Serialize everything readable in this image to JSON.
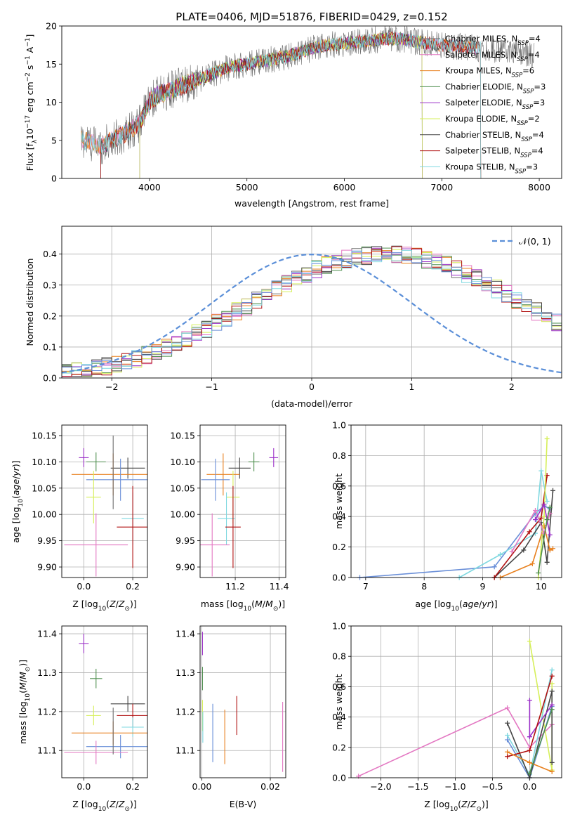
{
  "figure": {
    "title": "PLATE=0406, MJD=51876, FIBERID=0429, z=0.152"
  },
  "colors": {
    "Chabrier MILES": "#6e6e6e",
    "Salpeter MILES": "#e377c2",
    "Kroupa MILES": "#e8801e",
    "Chabrier ELODIE": "#4f8f4f",
    "Salpeter ELODIE": "#9b30c8",
    "Kroupa ELODIE": "#d6ef5a",
    "Chabrier STELIB": "#444444",
    "Salpeter STELIB": "#b01010",
    "Kroupa STELIB": "#7fd8e0",
    "extra": "#6a8fd8"
  },
  "chart_data": [
    {
      "id": "spectrum",
      "type": "line",
      "title": "PLATE=0406, MJD=51876, FIBERID=0429, z=0.152",
      "xlabel": "wavelength [Angstrom, rest frame]",
      "ylabel": "Flux [f_λ 10^-17 erg cm^-2 s^-1 A^-1]",
      "xlim": [
        3100,
        8230
      ],
      "ylim": [
        0,
        20
      ],
      "xticks": [
        4000,
        5000,
        6000,
        7000,
        8000
      ],
      "yticks": [
        0,
        5,
        10,
        15,
        20
      ],
      "grid": false,
      "legend_position": "top-right",
      "continuum": {
        "x": [
          3300,
          3500,
          3700,
          3900,
          4000,
          4100,
          4300,
          4500,
          4800,
          5000,
          5200,
          5400,
          5600,
          5800,
          6000,
          6200,
          6400,
          6600,
          6800,
          7000,
          7200,
          7400,
          7600,
          7800,
          7950
        ],
        "y": [
          5.0,
          4.3,
          5.5,
          7.2,
          10.2,
          11.0,
          12.0,
          13.0,
          14.5,
          15.0,
          15.5,
          16.0,
          16.7,
          17.5,
          17.7,
          18.0,
          18.3,
          18.3,
          17.8,
          17.5,
          17.3,
          17.1,
          16.9,
          16.5,
          16.3
        ]
      },
      "series": [
        {
          "name": "Chabrier MILES, N_SSP=4",
          "label_main": "Chabrier MILES, N",
          "sub": "SSP",
          "label_tail": "=4",
          "ssp": 4,
          "color": "#6e6e6e",
          "xmin": 3300,
          "xmax": 7950
        },
        {
          "name": "Salpeter MILES, N_SSP=4",
          "label_main": "Salpeter MILES, N",
          "sub": "SSP",
          "label_tail": "=4",
          "ssp": 4,
          "color": "#e377c2",
          "xmin": 3300,
          "xmax": 7400
        },
        {
          "name": "Kroupa MILES, N_SSP=6",
          "label_main": "Kroupa MILES, N",
          "sub": "SSP",
          "label_tail": "=6",
          "ssp": 6,
          "color": "#e8801e",
          "xmin": 3300,
          "xmax": 7400
        },
        {
          "name": "Chabrier ELODIE, N_SSP=3",
          "label_main": "Chabrier ELODIE, N",
          "sub": "SSP",
          "label_tail": "=3",
          "ssp": 3,
          "color": "#4f8f4f",
          "xmin": 3900,
          "xmax": 6800
        },
        {
          "name": "Salpeter ELODIE, N_SSP=3",
          "label_main": "Salpeter ELODIE, N",
          "sub": "SSP",
          "label_tail": "=3",
          "ssp": 3,
          "color": "#9b30c8",
          "xmin": 3900,
          "xmax": 6800
        },
        {
          "name": "Kroupa ELODIE, N_SSP=2",
          "label_main": "Kroupa ELODIE, N",
          "sub": "SSP",
          "label_tail": "=2",
          "ssp": 2,
          "color": "#d6ef5a",
          "xmin": 3900,
          "xmax": 6800
        },
        {
          "name": "Chabrier STELIB, N_SSP=4",
          "label_main": "Chabrier STELIB, N",
          "sub": "SSP",
          "label_tail": "=4",
          "ssp": 4,
          "color": "#444444",
          "xmin": 3500,
          "xmax": 7400
        },
        {
          "name": "Salpeter STELIB, N_SSP=4",
          "label_main": "Salpeter STELIB, N",
          "sub": "SSP",
          "label_tail": "=4",
          "ssp": 4,
          "color": "#b01010",
          "xmin": 3500,
          "xmax": 7400
        },
        {
          "name": "Kroupa STELIB, N_SSP=3",
          "label_main": "Kroupa STELIB, N",
          "sub": "SSP",
          "label_tail": "=3",
          "ssp": 3,
          "color": "#7fd8e0",
          "xmin": 3300,
          "xmax": 7400
        }
      ]
    },
    {
      "id": "residuals",
      "type": "histogram",
      "xlabel": "(data-model)/error",
      "ylabel": "Normed distribution",
      "xlim": [
        -2.5,
        2.5
      ],
      "ylim": [
        0,
        0.49
      ],
      "xticks": [
        -2,
        -1,
        0,
        1,
        2
      ],
      "yticks": [
        0.0,
        0.1,
        0.2,
        0.3,
        0.4
      ],
      "grid": true,
      "legend": [
        {
          "name": "N(0,1)",
          "style": "dashed",
          "color": "#5b8fd8"
        }
      ],
      "legend_position": "top-right",
      "bin_width": 0.1,
      "bin_start": -2.5,
      "base_values": [
        0.018,
        0.022,
        0.027,
        0.033,
        0.038,
        0.046,
        0.054,
        0.063,
        0.074,
        0.085,
        0.098,
        0.112,
        0.127,
        0.143,
        0.16,
        0.178,
        0.196,
        0.215,
        0.233,
        0.252,
        0.27,
        0.288,
        0.305,
        0.322,
        0.337,
        0.351,
        0.363,
        0.374,
        0.383,
        0.39,
        0.395,
        0.398,
        0.399,
        0.398,
        0.395,
        0.39,
        0.383,
        0.374,
        0.363,
        0.351,
        0.337,
        0.322,
        0.305,
        0.288,
        0.27,
        0.252,
        0.233,
        0.215,
        0.196,
        0.178
      ],
      "series_colors": [
        "#6e6e6e",
        "#e377c2",
        "#e8801e",
        "#4f8f4f",
        "#9b30c8",
        "#d6ef5a",
        "#444444",
        "#b01010",
        "#7fd8e0",
        "#6a8fd8"
      ]
    },
    {
      "id": "age-vs-Z",
      "type": "errorbar",
      "xlabel": "Z [log10(Z/Z⊙)]",
      "ylabel": "age [log10(age/yr)]",
      "xlim": [
        -0.09,
        0.26
      ],
      "ylim": [
        9.88,
        10.17
      ],
      "xticks": [
        0.0,
        0.2
      ],
      "yticks": [
        9.9,
        9.95,
        10.0,
        10.05,
        10.1,
        10.15
      ],
      "grid": true,
      "points": [
        {
          "color": "#9b30c8",
          "x": 0.0,
          "y": 10.108,
          "xerr": 0.02,
          "yerr": 0.018
        },
        {
          "color": "#4f8f4f",
          "x": 0.05,
          "y": 10.1,
          "xerr": 0.04,
          "yerr": 0.018
        },
        {
          "color": "#444444",
          "x": 0.18,
          "y": 10.088,
          "xerr": 0.07,
          "yerr": 0.02
        },
        {
          "color": "#e8801e",
          "x": 0.12,
          "y": 10.076,
          "xerr": 0.17,
          "yerr": 0.04
        },
        {
          "color": "#6a8fd8",
          "x": 0.15,
          "y": 10.066,
          "xerr": 0.14,
          "yerr": 0.04
        },
        {
          "color": "#d6ef5a",
          "x": 0.04,
          "y": 10.033,
          "xerr": 0.03,
          "yerr": 0.05
        },
        {
          "color": "#7fd8e0",
          "x": 0.2,
          "y": 9.992,
          "xerr": 0.045,
          "yerr": 0.05
        },
        {
          "color": "#b01010",
          "x": 0.2,
          "y": 9.976,
          "xerr": 0.065,
          "yerr": 0.078
        },
        {
          "color": "#e377c2",
          "x": 0.05,
          "y": 9.942,
          "xerr": 0.13,
          "yerr": 0.06
        },
        {
          "color": "#6e6e6e",
          "x": 0.12,
          "y": 10.08,
          "xerr": 0.0,
          "yerr": 0.07
        }
      ]
    },
    {
      "id": "age-vs-mass",
      "type": "errorbar",
      "xlabel": "mass [log10(M/M⊙)]",
      "ylabel": "",
      "xlim": [
        11.04,
        11.43
      ],
      "ylim": [
        9.88,
        10.17
      ],
      "xticks": [
        11.2,
        11.4
      ],
      "yticks": [
        9.9,
        9.95,
        10.0,
        10.05,
        10.1,
        10.15
      ],
      "grid": true,
      "points": [
        {
          "color": "#9b30c8",
          "x": 11.375,
          "y": 10.108,
          "xerr": 0.02,
          "yerr": 0.018
        },
        {
          "color": "#4f8f4f",
          "x": 11.285,
          "y": 10.1,
          "xerr": 0.025,
          "yerr": 0.018
        },
        {
          "color": "#444444",
          "x": 11.22,
          "y": 10.088,
          "xerr": 0.05,
          "yerr": 0.02
        },
        {
          "color": "#e8801e",
          "x": 11.145,
          "y": 10.076,
          "xerr": 0.075,
          "yerr": 0.04
        },
        {
          "color": "#6a8fd8",
          "x": 11.11,
          "y": 10.066,
          "xerr": 0.065,
          "yerr": 0.04
        },
        {
          "color": "#d6ef5a",
          "x": 11.19,
          "y": 10.033,
          "xerr": 0.03,
          "yerr": 0.05
        },
        {
          "color": "#7fd8e0",
          "x": 11.16,
          "y": 9.992,
          "xerr": 0.04,
          "yerr": 0.05
        },
        {
          "color": "#b01010",
          "x": 11.19,
          "y": 9.976,
          "xerr": 0.035,
          "yerr": 0.078
        },
        {
          "color": "#e377c2",
          "x": 11.095,
          "y": 9.942,
          "xerr": 0.08,
          "yerr": 0.06
        }
      ]
    },
    {
      "id": "weight-vs-age",
      "type": "line",
      "xlabel": "age [log10(age/yr)]",
      "ylabel": "mass weight",
      "xlim": [
        6.75,
        10.35
      ],
      "ylim": [
        0.0,
        1.0
      ],
      "xticks": [
        7,
        8,
        9,
        10
      ],
      "yticks": [
        0.0,
        0.2,
        0.4,
        0.6,
        0.8,
        1.0
      ],
      "grid": true,
      "series": [
        {
          "color": "#6a8fd8",
          "x": [
            6.9,
            9.2,
            9.9,
            10.05,
            10.15
          ],
          "y": [
            0.0,
            0.07,
            0.42,
            0.47,
            0.45
          ]
        },
        {
          "color": "#7fd8e0",
          "x": [
            8.6,
            9.3,
            9.9,
            10.0,
            10.1
          ],
          "y": [
            0.0,
            0.15,
            0.29,
            0.7,
            0.5
          ]
        },
        {
          "color": "#444444",
          "x": [
            9.2,
            9.7,
            10.0,
            10.1,
            10.2
          ],
          "y": [
            0.0,
            0.18,
            0.36,
            0.1,
            0.57
          ]
        },
        {
          "color": "#e8801e",
          "x": [
            9.3,
            9.85,
            10.05,
            10.15,
            10.2
          ],
          "y": [
            0.0,
            0.09,
            0.34,
            0.18,
            0.19
          ]
        },
        {
          "color": "#b01010",
          "x": [
            9.2,
            9.8,
            10.0,
            10.1
          ],
          "y": [
            0.0,
            0.3,
            0.39,
            0.67
          ]
        },
        {
          "color": "#d6ef5a",
          "x": [
            9.95,
            10.05,
            10.1
          ],
          "y": [
            0.0,
            0.4,
            0.91
          ]
        },
        {
          "color": "#e377c2",
          "x": [
            9.5,
            9.9,
            10.05,
            10.15
          ],
          "y": [
            0.17,
            0.44,
            0.29,
            0.42
          ]
        },
        {
          "color": "#9b30c8",
          "x": [
            9.9,
            10.05,
            10.15
          ],
          "y": [
            0.38,
            0.48,
            0.28
          ]
        },
        {
          "color": "#4f8f4f",
          "x": [
            9.95,
            10.1,
            10.15
          ],
          "y": [
            0.03,
            0.38,
            0.46
          ]
        }
      ]
    },
    {
      "id": "mass-vs-Z",
      "type": "errorbar",
      "xlabel": "Z [log10(Z/Z⊙)]",
      "ylabel": "mass [log10(M/M⊙)]",
      "xlim": [
        -0.09,
        0.26
      ],
      "ylim": [
        11.03,
        11.42
      ],
      "xticks": [
        0.0,
        0.2
      ],
      "yticks": [
        11.1,
        11.2,
        11.3,
        11.4
      ],
      "grid": true,
      "points": [
        {
          "color": "#9b30c8",
          "x": 0.0,
          "y": 11.375,
          "xerr": 0.02,
          "yerr": 0.025
        },
        {
          "color": "#4f8f4f",
          "x": 0.05,
          "y": 11.285,
          "xerr": 0.025,
          "yerr": 0.025
        },
        {
          "color": "#444444",
          "x": 0.18,
          "y": 11.22,
          "xerr": 0.07,
          "yerr": 0.02
        },
        {
          "color": "#b01010",
          "x": 0.2,
          "y": 11.19,
          "xerr": 0.065,
          "yerr": 0.03
        },
        {
          "color": "#d6ef5a",
          "x": 0.04,
          "y": 11.19,
          "xerr": 0.03,
          "yerr": 0.025
        },
        {
          "color": "#7fd8e0",
          "x": 0.2,
          "y": 11.16,
          "xerr": 0.045,
          "yerr": 0.025
        },
        {
          "color": "#e8801e",
          "x": 0.12,
          "y": 11.145,
          "xerr": 0.17,
          "yerr": 0.03
        },
        {
          "color": "#6a8fd8",
          "x": 0.15,
          "y": 11.11,
          "xerr": 0.14,
          "yerr": 0.03
        },
        {
          "color": "#e377c2",
          "x": 0.05,
          "y": 11.095,
          "xerr": 0.13,
          "yerr": 0.03
        },
        {
          "color": "#6e6e6e",
          "x": 0.12,
          "y": 11.15,
          "xerr": 0.0,
          "yerr": 0.06
        }
      ]
    },
    {
      "id": "mass-vs-EBV",
      "type": "errorbar",
      "xlabel": "E(B-V)",
      "ylabel": "",
      "xlim": [
        -0.0005,
        0.0245
      ],
      "ylim": [
        11.03,
        11.42
      ],
      "xticks": [
        0.0,
        0.02
      ],
      "yticks": [
        11.1,
        11.2,
        11.3,
        11.4
      ],
      "grid": true,
      "points": [
        {
          "color": "#9b30c8",
          "x": 0.0002,
          "y": 11.375,
          "xerr": 0.0,
          "yerr": 0.03
        },
        {
          "color": "#4f8f4f",
          "x": 0.0002,
          "y": 11.285,
          "xerr": 0.0,
          "yerr": 0.03
        },
        {
          "color": "#d6ef5a",
          "x": 0.0002,
          "y": 11.19,
          "xerr": 0.0,
          "yerr": 0.04
        },
        {
          "color": "#7fd8e0",
          "x": 0.0003,
          "y": 11.16,
          "xerr": 0.0,
          "yerr": 0.04
        },
        {
          "color": "#6a8fd8",
          "x": 0.0032,
          "y": 11.145,
          "xerr": 0.0,
          "yerr": 0.075
        },
        {
          "color": "#e8801e",
          "x": 0.0067,
          "y": 11.135,
          "xerr": 0.0,
          "yerr": 0.07
        },
        {
          "color": "#b01010",
          "x": 0.0102,
          "y": 11.19,
          "xerr": 0.0,
          "yerr": 0.05
        },
        {
          "color": "#e377c2",
          "x": 0.0236,
          "y": 11.135,
          "xerr": 0.0,
          "yerr": 0.09
        }
      ]
    },
    {
      "id": "weight-vs-Z",
      "type": "line",
      "xlabel": "Z [log10(Z/Z⊙)]",
      "ylabel": "mass weight",
      "xlim": [
        -2.4,
        0.43
      ],
      "ylim": [
        0.0,
        1.0
      ],
      "xticks": [
        -2.0,
        -1.5,
        -1.0,
        -0.5,
        0.0
      ],
      "yticks": [
        0.0,
        0.2,
        0.4,
        0.6,
        0.8,
        1.0
      ],
      "grid": true,
      "series": [
        {
          "color": "#e377c2",
          "x": [
            -2.3,
            -0.3,
            0.0,
            0.3
          ],
          "y": [
            0.01,
            0.46,
            0.2,
            0.35
          ]
        },
        {
          "color": "#d6ef5a",
          "x": [
            0.0,
            0.3,
            0.3
          ],
          "y": [
            0.9,
            0.05,
            0.62
          ]
        },
        {
          "color": "#7fd8e0",
          "x": [
            -0.3,
            0.0,
            0.3
          ],
          "y": [
            0.28,
            0.02,
            0.71
          ]
        },
        {
          "color": "#6a8fd8",
          "x": [
            -0.3,
            0.0,
            0.3
          ],
          "y": [
            0.25,
            0.0,
            0.47
          ]
        },
        {
          "color": "#444444",
          "x": [
            -0.3,
            0.0,
            0.3,
            0.3
          ],
          "y": [
            0.36,
            0.0,
            0.57,
            0.1
          ]
        },
        {
          "color": "#9b30c8",
          "x": [
            0.0,
            0.0,
            0.3
          ],
          "y": [
            0.51,
            0.27,
            0.48
          ]
        },
        {
          "color": "#b01010",
          "x": [
            -0.3,
            0.0,
            0.3
          ],
          "y": [
            0.14,
            0.18,
            0.67
          ]
        },
        {
          "color": "#e8801e",
          "x": [
            -0.3,
            0.0,
            0.3
          ],
          "y": [
            0.17,
            0.1,
            0.04
          ]
        },
        {
          "color": "#4f8f4f",
          "x": [
            0.0,
            0.3
          ],
          "y": [
            0.03,
            0.45
          ]
        }
      ]
    }
  ]
}
